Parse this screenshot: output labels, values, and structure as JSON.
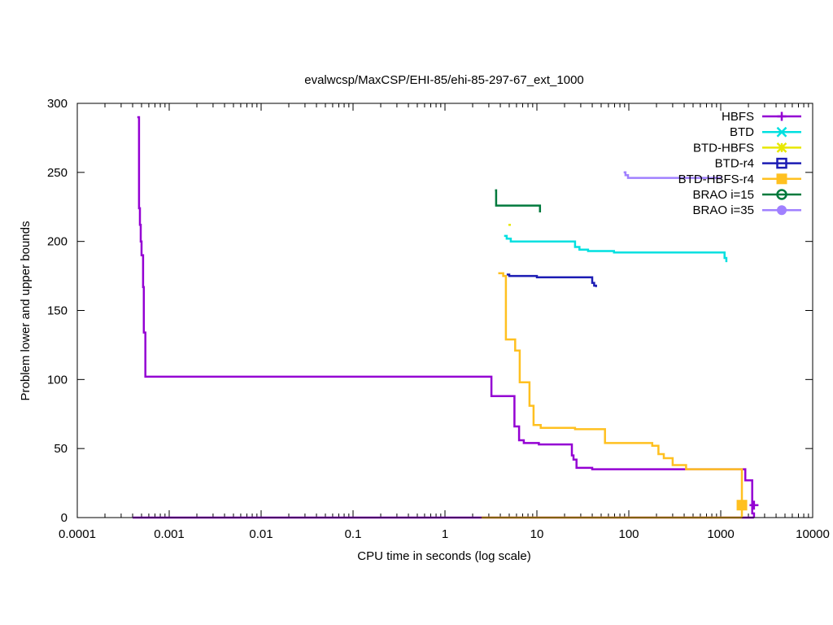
{
  "chart_data": {
    "type": "line",
    "title": "evalwcsp/MaxCSP/EHI-85/ehi-85-297-67_ext_1000",
    "xlabel": "CPU time in seconds (log scale)",
    "ylabel": "Problem lower and upper bounds",
    "xscale": "log",
    "xlim": [
      0.0001,
      10000
    ],
    "ylim": [
      0,
      300
    ],
    "x_ticks": [
      0.0001,
      0.001,
      0.01,
      0.1,
      1,
      10,
      100,
      1000,
      10000
    ],
    "x_tick_labels": [
      "0.0001",
      "0.001",
      "0.01",
      "0.1",
      "1",
      "10",
      "100",
      "1000",
      "10000"
    ],
    "y_ticks": [
      0,
      50,
      100,
      150,
      200,
      250,
      300
    ],
    "y_tick_labels": [
      "0",
      "50",
      "100",
      "150",
      "200",
      "250",
      "300"
    ],
    "grid": false,
    "legend_position": "top-right",
    "series": [
      {
        "name": "HBFS",
        "color": "#9400d3",
        "marker": "plus",
        "upper": [
          [
            0.00045,
            290
          ],
          [
            0.00047,
            224
          ],
          [
            0.00048,
            212
          ],
          [
            0.00049,
            200
          ],
          [
            0.0005,
            190
          ],
          [
            0.00052,
            167
          ],
          [
            0.00053,
            134
          ],
          [
            0.00055,
            102
          ],
          [
            3.2,
            88
          ],
          [
            5.7,
            66
          ],
          [
            6.4,
            56
          ],
          [
            7.2,
            54
          ],
          [
            10.5,
            53
          ],
          [
            24,
            45
          ],
          [
            25,
            42
          ],
          [
            27,
            36
          ],
          [
            40,
            35
          ],
          [
            1850,
            27
          ],
          [
            2200,
            3
          ],
          [
            2300,
            0
          ]
        ],
        "lower": [
          [
            0.0004,
            0
          ],
          [
            2300,
            0
          ]
        ],
        "marker_points": [
          [
            2300,
            9
          ]
        ]
      },
      {
        "name": "BTD",
        "color": "#00e0e0",
        "marker": "cross",
        "upper": [
          [
            4.4,
            204
          ],
          [
            4.7,
            202
          ],
          [
            5.2,
            200
          ],
          [
            26,
            196
          ],
          [
            29,
            194
          ],
          [
            36,
            193
          ],
          [
            69,
            192
          ],
          [
            1100,
            188
          ],
          [
            1150,
            185
          ]
        ],
        "lower": []
      },
      {
        "name": "BTD-HBFS",
        "color": "#e8e800",
        "marker": "star",
        "upper": [
          [
            4.9,
            212
          ]
        ],
        "lower": []
      },
      {
        "name": "BTD-r4",
        "color": "#1c1cb4",
        "marker": "square",
        "upper": [
          [
            4.7,
            176
          ],
          [
            5.0,
            175
          ],
          [
            10,
            174
          ],
          [
            40,
            170
          ],
          [
            42,
            168
          ],
          [
            44,
            167
          ]
        ],
        "lower": []
      },
      {
        "name": "BTD-HBFS-r4",
        "color": "#ffc020",
        "marker": "filled-square",
        "upper": [
          [
            3.8,
            177
          ],
          [
            4.3,
            175
          ],
          [
            4.6,
            129
          ],
          [
            5.8,
            121
          ],
          [
            6.5,
            98
          ],
          [
            8.3,
            81
          ],
          [
            9.2,
            67
          ],
          [
            11,
            65
          ],
          [
            26,
            64
          ],
          [
            55,
            54
          ],
          [
            180,
            52
          ],
          [
            210,
            46
          ],
          [
            240,
            43
          ],
          [
            300,
            38
          ],
          [
            420,
            35
          ],
          [
            1700,
            0
          ]
        ],
        "lower": [
          [
            2.5,
            0
          ],
          [
            1700,
            0
          ]
        ],
        "marker_points": [
          [
            1700,
            9
          ]
        ]
      },
      {
        "name": "BRAO i=15",
        "color": "#007a3d",
        "marker": "circle",
        "upper": [
          [
            3.5,
            237
          ],
          [
            3.6,
            226
          ],
          [
            10.8,
            221
          ]
        ],
        "lower": []
      },
      {
        "name": "BRAO i=35",
        "color": "#a080ff",
        "marker": "filled-circle",
        "upper": [
          [
            88,
            250
          ],
          [
            92,
            248
          ],
          [
            98,
            246
          ],
          [
            1000,
            245
          ]
        ],
        "lower": []
      }
    ]
  }
}
